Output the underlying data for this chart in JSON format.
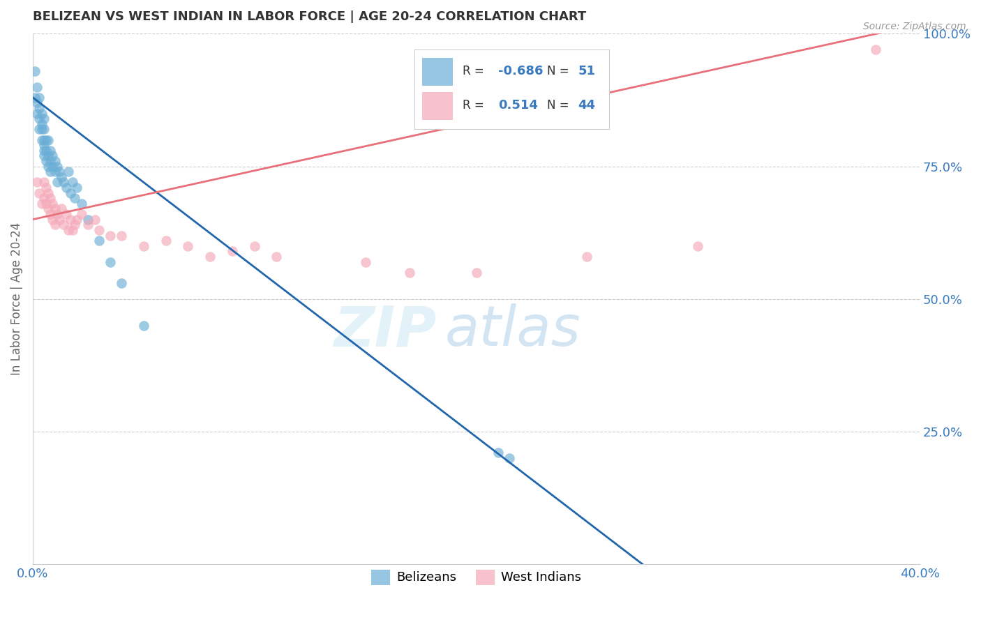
{
  "title": "BELIZEAN VS WEST INDIAN IN LABOR FORCE | AGE 20-24 CORRELATION CHART",
  "source_text": "Source: ZipAtlas.com",
  "ylabel": "In Labor Force | Age 20-24",
  "xlim": [
    0.0,
    0.4
  ],
  "ylim": [
    0.0,
    1.0
  ],
  "xticks": [
    0.0,
    0.4
  ],
  "xticklabels": [
    "0.0%",
    "40.0%"
  ],
  "yticks": [
    0.25,
    0.5,
    0.75,
    1.0
  ],
  "yticklabels": [
    "25.0%",
    "50.0%",
    "75.0%",
    "100.0%"
  ],
  "belizean_R": -0.686,
  "belizean_N": 51,
  "west_indian_R": 0.514,
  "west_indian_N": 44,
  "blue_color": "#6aaed6",
  "pink_color": "#f4a8b8",
  "blue_line_color": "#2166ac",
  "pink_line_color": "#e8707a",
  "title_color": "#333333",
  "source_color": "#999999",
  "legend_R_color": "#3a7abf",
  "grid_color": "#cccccc",
  "blue_line_intercept": 0.88,
  "blue_line_slope": -3.2,
  "pink_line_intercept": 0.65,
  "pink_line_slope": 0.92,
  "belizean_x": [
    0.001,
    0.001,
    0.002,
    0.002,
    0.002,
    0.003,
    0.003,
    0.003,
    0.003,
    0.004,
    0.004,
    0.004,
    0.004,
    0.005,
    0.005,
    0.005,
    0.005,
    0.005,
    0.005,
    0.006,
    0.006,
    0.006,
    0.007,
    0.007,
    0.007,
    0.008,
    0.008,
    0.008,
    0.009,
    0.009,
    0.01,
    0.01,
    0.011,
    0.011,
    0.012,
    0.013,
    0.014,
    0.015,
    0.016,
    0.017,
    0.018,
    0.019,
    0.02,
    0.022,
    0.025,
    0.03,
    0.035,
    0.04,
    0.05,
    0.21,
    0.215
  ],
  "belizean_y": [
    0.93,
    0.88,
    0.9,
    0.85,
    0.87,
    0.86,
    0.82,
    0.84,
    0.88,
    0.83,
    0.8,
    0.85,
    0.82,
    0.84,
    0.8,
    0.78,
    0.82,
    0.79,
    0.77,
    0.8,
    0.78,
    0.76,
    0.8,
    0.77,
    0.75,
    0.78,
    0.76,
    0.74,
    0.77,
    0.75,
    0.76,
    0.74,
    0.75,
    0.72,
    0.74,
    0.73,
    0.72,
    0.71,
    0.74,
    0.7,
    0.72,
    0.69,
    0.71,
    0.68,
    0.65,
    0.61,
    0.57,
    0.53,
    0.45,
    0.21,
    0.2
  ],
  "west_indian_x": [
    0.002,
    0.003,
    0.004,
    0.005,
    0.005,
    0.006,
    0.006,
    0.007,
    0.007,
    0.008,
    0.008,
    0.009,
    0.009,
    0.01,
    0.01,
    0.011,
    0.012,
    0.013,
    0.014,
    0.015,
    0.016,
    0.017,
    0.018,
    0.019,
    0.02,
    0.022,
    0.025,
    0.028,
    0.03,
    0.035,
    0.04,
    0.05,
    0.06,
    0.07,
    0.08,
    0.09,
    0.1,
    0.11,
    0.15,
    0.17,
    0.2,
    0.25,
    0.3,
    0.38
  ],
  "west_indian_y": [
    0.72,
    0.7,
    0.68,
    0.72,
    0.69,
    0.71,
    0.68,
    0.7,
    0.67,
    0.69,
    0.66,
    0.68,
    0.65,
    0.67,
    0.64,
    0.66,
    0.65,
    0.67,
    0.64,
    0.66,
    0.63,
    0.65,
    0.63,
    0.64,
    0.65,
    0.66,
    0.64,
    0.65,
    0.63,
    0.62,
    0.62,
    0.6,
    0.61,
    0.6,
    0.58,
    0.59,
    0.6,
    0.58,
    0.57,
    0.55,
    0.55,
    0.58,
    0.6,
    0.97
  ]
}
